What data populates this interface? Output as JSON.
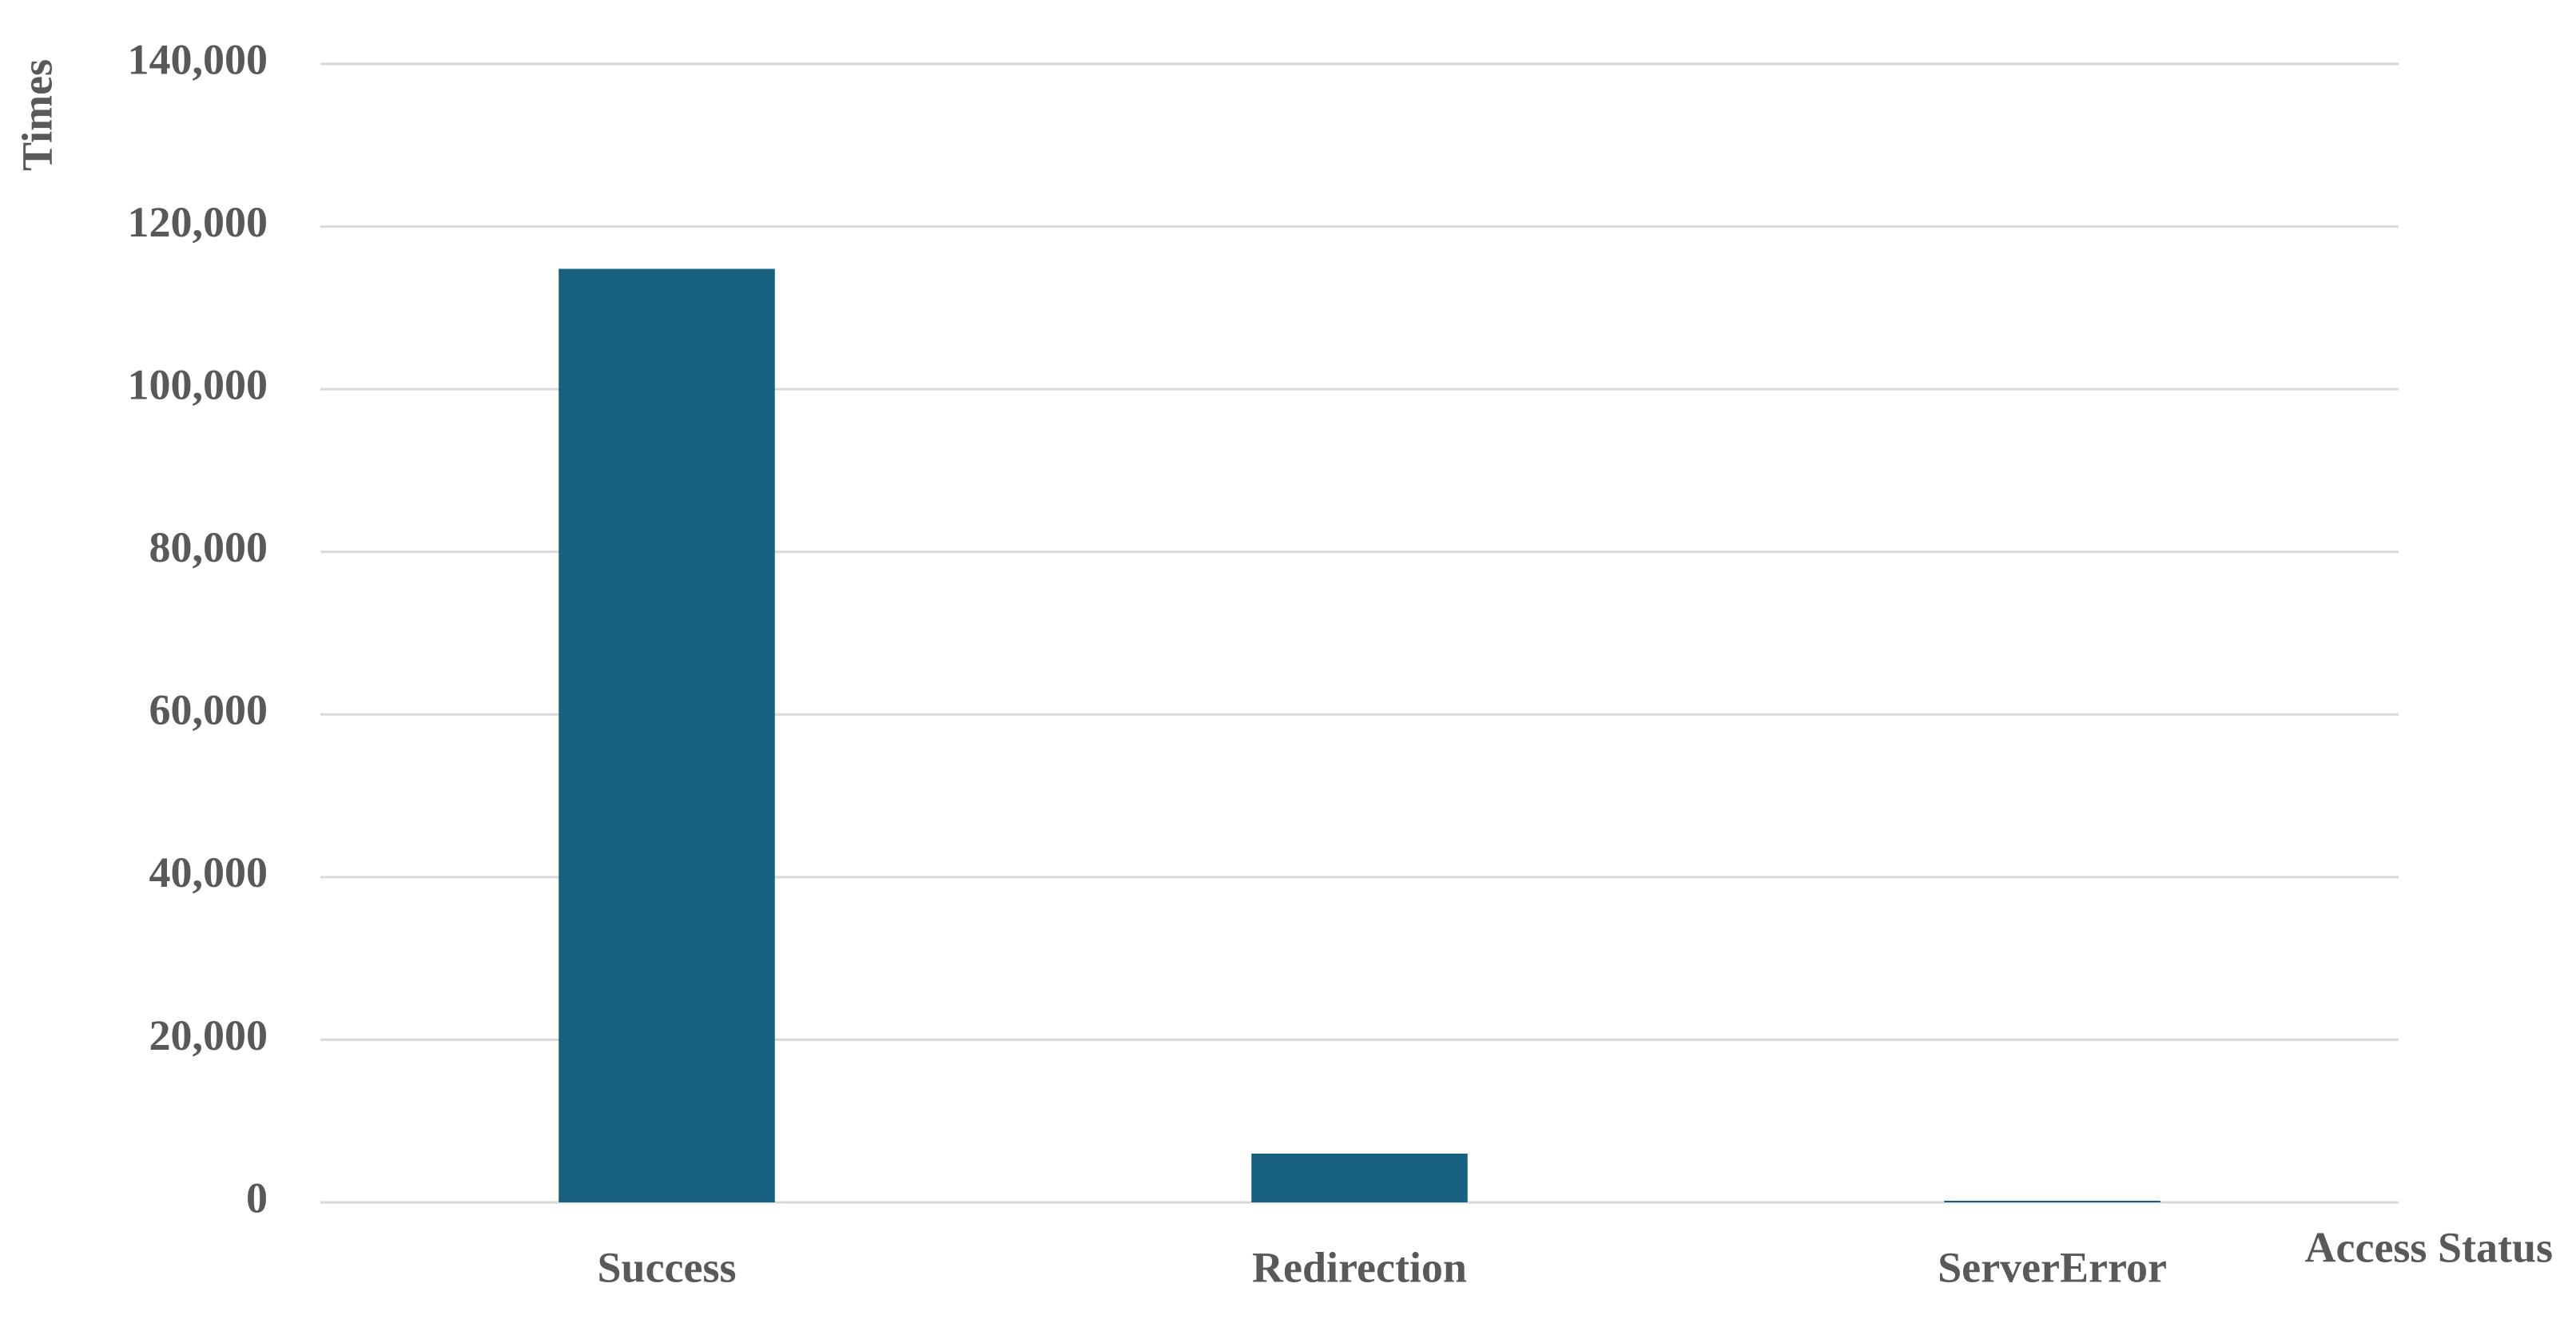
{
  "chart_data": {
    "type": "bar",
    "x_label": "Access Status",
    "y_label": "Times",
    "categories": [
      "Success",
      "Redirection",
      "ServerError"
    ],
    "values": [
      114800,
      6000,
      200
    ],
    "color": "#17607f",
    "ylim": [
      0,
      140000
    ],
    "yticks": [
      0,
      {
        "value": 20000,
        "label": "20,000"
      },
      {
        "value": 40000,
        "label": "40,000"
      },
      {
        "value": 60000,
        "label": "60,000"
      },
      {
        "value": 80000,
        "label": "80,000"
      },
      {
        "value": 100000,
        "label": "100,000"
      },
      {
        "value": 120000,
        "label": "120,000"
      },
      {
        "value": 140000,
        "label": "140,000"
      }
    ],
    "grid": true
  }
}
